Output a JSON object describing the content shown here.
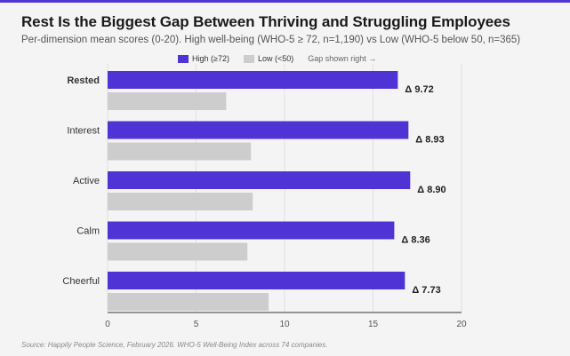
{
  "title": "Rest Is the Biggest Gap Between Thriving and Struggling Employees",
  "subtitle": "Per-dimension mean scores (0-20). High well-being (WHO-5 ≥ 72, n=1,190) vs Low (WHO-5 below 50, n=365)",
  "legend": {
    "high_label": "High (≥72)",
    "low_label": "Low (<50)",
    "note": "Gap shown right →"
  },
  "colors": {
    "high": "#4f33d4",
    "low": "#cdcdcd",
    "accent": "#5136d6"
  },
  "source": "Source: Happily People Science, February 2026. WHO-5 Well-Being Index across 74 companies.",
  "chart_data": {
    "type": "bar",
    "orientation": "horizontal",
    "categories": [
      "Rested",
      "Interest",
      "Active",
      "Calm",
      "Cheerful"
    ],
    "highlight_category": "Rested",
    "series": [
      {
        "name": "High (≥72)",
        "values": [
          16.4,
          17.0,
          17.1,
          16.2,
          16.8
        ]
      },
      {
        "name": "Low (<50)",
        "values": [
          6.7,
          8.1,
          8.2,
          7.9,
          9.1
        ]
      }
    ],
    "gap_labels": [
      "Δ 9.72",
      "Δ 8.93",
      "Δ 8.90",
      "Δ 8.36",
      "Δ 7.73"
    ],
    "xlim": [
      0,
      20
    ],
    "xticks": [
      0,
      5,
      10,
      15,
      20
    ],
    "xtick_labels": [
      "0",
      "5",
      "10",
      "15",
      "20"
    ],
    "grid": "vertical"
  }
}
